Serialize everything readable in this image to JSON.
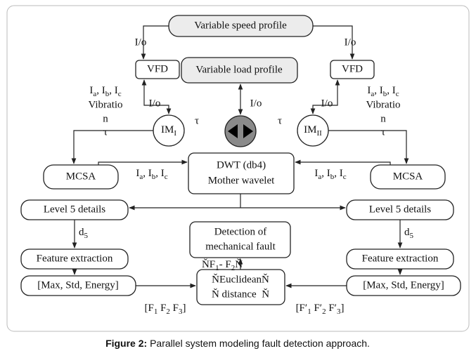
{
  "caption": {
    "label": "Figure 2:",
    "text": " Parallel system modeling fault detection approach."
  },
  "nodes": {
    "speed_profile": "Variable speed profile",
    "vfd_left": "VFD",
    "vfd_right": "VFD",
    "load_profile": "Variable load profile",
    "im_left": [
      "IM",
      "I"
    ],
    "im_right": [
      "IM",
      "II"
    ],
    "mcsa_left": "MCSA",
    "mcsa_right": "MCSA",
    "dwt": [
      "DWT (db4)",
      "Mother wavelet"
    ],
    "level_left": "Level 5 details",
    "level_right": "Level 5 details",
    "feature_left": "Feature extraction",
    "feature_right": "Feature extraction",
    "detection": [
      "Detection of",
      "mechanical fault"
    ],
    "stats_left": "[Max, Std, Energy]",
    "stats_right": "[Max, Std, Energy]",
    "euclidean": [
      "ŇEuclideanŇ",
      "Ň distance  Ň"
    ]
  },
  "edge_labels": {
    "io_speed_left": "I/o",
    "io_speed_right": "I/o",
    "io_vfd_left": "I/o",
    "io_vfd_right": "I/o",
    "io_load": "I/o",
    "tau_left": "τ",
    "tau_right": "τ",
    "signals_left": {
      "currents": [
        "I",
        "a",
        ", I",
        "b",
        ", I",
        "c"
      ],
      "vibration": "Vibratio",
      "vibration_end": "n",
      "torque": "τ"
    },
    "signals_right": {
      "currents": [
        "I",
        "a",
        ", I",
        "b",
        ", I",
        "c"
      ],
      "vibration": "Vibratio",
      "vibration_end": "n",
      "torque": "τ"
    },
    "currents_dwt_left": [
      "I",
      "a",
      ", I",
      "b",
      ", I",
      "c"
    ],
    "currents_dwt_right": [
      "I",
      "a",
      ", I",
      "b",
      ", I",
      "c"
    ],
    "d5_left": [
      "d",
      "5"
    ],
    "d5_right": [
      "d",
      "5"
    ],
    "features_left": [
      "[F",
      "1",
      " F",
      "2",
      " F",
      "3",
      "]"
    ],
    "features_right": [
      "[F′",
      "1",
      " F′",
      "2",
      " F′",
      "3",
      "]"
    ],
    "difference": [
      "ŇF",
      "1",
      "- F",
      "2",
      "Ň"
    ]
  }
}
